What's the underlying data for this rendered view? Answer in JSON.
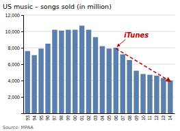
{
  "chart_data": {
    "type": "bar",
    "title": "US music – songs sold (in million)",
    "categories": [
      "93",
      "94",
      "95",
      "96",
      "97",
      "98",
      "99",
      "00",
      "01",
      "02",
      "03",
      "04",
      "05",
      "06",
      "07",
      "08",
      "09",
      "10",
      "11",
      "12",
      "13",
      "14"
    ],
    "values": [
      7600,
      7100,
      7900,
      8500,
      10200,
      10100,
      10200,
      10200,
      10700,
      10200,
      9300,
      8200,
      7900,
      8000,
      7200,
      6500,
      5200,
      4800,
      4700,
      4600,
      4300,
      4000
    ],
    "color": "#5b7fad",
    "ylim": [
      0,
      12000
    ],
    "yticks": [
      {
        "value": 2000,
        "label": "2,000"
      },
      {
        "value": 4000,
        "label": "4,000"
      },
      {
        "value": 6000,
        "label": "6,000"
      },
      {
        "value": 8000,
        "label": "8,000"
      },
      {
        "value": 10000,
        "label": "10,000"
      },
      {
        "value": 12000,
        "label": "12,000"
      }
    ],
    "grid": true,
    "annotations": [
      {
        "text": "iTunes",
        "category": "06",
        "color": "#cc0000"
      }
    ],
    "trend_line": {
      "categories": [
        "06",
        "14"
      ],
      "values": [
        7900,
        3900
      ],
      "color": "#cc0000",
      "line_style": "dashed"
    },
    "source": "Source: MPAA"
  }
}
